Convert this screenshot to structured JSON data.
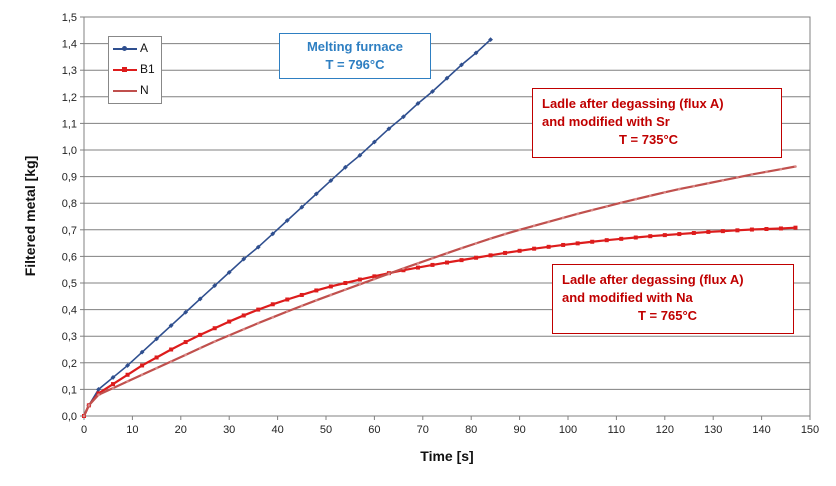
{
  "chart_data": {
    "type": "line",
    "xlabel": "Time [s]",
    "ylabel": "Filtered metal [kg]",
    "xlim": [
      0,
      150
    ],
    "ylim": [
      0,
      1.5
    ],
    "xticks": [
      "0",
      "10",
      "20",
      "30",
      "40",
      "50",
      "60",
      "70",
      "80",
      "90",
      "100",
      "110",
      "120",
      "130",
      "140",
      "150"
    ],
    "yticks": [
      "0,0",
      "0,1",
      "0,2",
      "0,3",
      "0,4",
      "0,5",
      "0,6",
      "0,7",
      "0,8",
      "0,9",
      "1,0",
      "1,1",
      "1,2",
      "1,3",
      "1,4",
      "1,5"
    ],
    "grid": true,
    "legend_position": "top-left",
    "series": [
      {
        "name": "A",
        "color": "#2f4f8f",
        "marker": "diamond",
        "x": [
          0,
          1,
          3,
          6,
          9,
          12,
          15,
          18,
          21,
          24,
          27,
          30,
          33,
          36,
          39,
          42,
          45,
          48,
          51,
          54,
          57,
          60,
          63,
          66,
          69,
          72,
          75,
          78,
          81,
          84
        ],
        "y": [
          0,
          0.04,
          0.1,
          0.145,
          0.19,
          0.24,
          0.29,
          0.34,
          0.39,
          0.44,
          0.49,
          0.54,
          0.59,
          0.635,
          0.685,
          0.735,
          0.785,
          0.835,
          0.885,
          0.935,
          0.98,
          1.03,
          1.08,
          1.125,
          1.175,
          1.22,
          1.27,
          1.32,
          1.365,
          1.415
        ]
      },
      {
        "name": "B1",
        "color": "#dd1c1c",
        "marker": "square",
        "x": [
          0,
          1,
          3,
          6,
          9,
          12,
          15,
          18,
          21,
          24,
          27,
          30,
          33,
          36,
          39,
          42,
          45,
          48,
          51,
          54,
          57,
          60,
          63,
          66,
          69,
          72,
          75,
          78,
          81,
          84,
          87,
          90,
          93,
          96,
          99,
          102,
          105,
          108,
          111,
          114,
          117,
          120,
          123,
          126,
          129,
          132,
          135,
          138,
          141,
          144,
          147
        ],
        "y": [
          0,
          0.04,
          0.085,
          0.12,
          0.155,
          0.19,
          0.22,
          0.25,
          0.278,
          0.305,
          0.33,
          0.355,
          0.378,
          0.4,
          0.42,
          0.438,
          0.455,
          0.472,
          0.487,
          0.5,
          0.513,
          0.525,
          0.537,
          0.548,
          0.558,
          0.568,
          0.577,
          0.586,
          0.595,
          0.604,
          0.613,
          0.621,
          0.629,
          0.636,
          0.643,
          0.649,
          0.655,
          0.661,
          0.666,
          0.671,
          0.676,
          0.68,
          0.684,
          0.688,
          0.692,
          0.695,
          0.698,
          0.701,
          0.703,
          0.705,
          0.708
        ]
      },
      {
        "name": "N",
        "color": "#c0504d",
        "marker": "none",
        "x": [
          0,
          1,
          3,
          6,
          9,
          12,
          15,
          18,
          21,
          24,
          27,
          30,
          33,
          36,
          39,
          42,
          45,
          48,
          51,
          54,
          57,
          60,
          63,
          66,
          69,
          72,
          75,
          78,
          81,
          84,
          87,
          90,
          93,
          96,
          99,
          102,
          105,
          108,
          111,
          114,
          117,
          120,
          123,
          126,
          129,
          132,
          135,
          138,
          141,
          144,
          147
        ],
        "y": [
          0,
          0.04,
          0.08,
          0.105,
          0.13,
          0.155,
          0.18,
          0.205,
          0.23,
          0.255,
          0.28,
          0.303,
          0.326,
          0.349,
          0.371,
          0.393,
          0.414,
          0.435,
          0.455,
          0.475,
          0.495,
          0.515,
          0.535,
          0.555,
          0.574,
          0.593,
          0.612,
          0.631,
          0.649,
          0.667,
          0.684,
          0.7,
          0.715,
          0.73,
          0.745,
          0.76,
          0.774,
          0.788,
          0.802,
          0.815,
          0.828,
          0.841,
          0.853,
          0.864,
          0.875,
          0.886,
          0.897,
          0.908,
          0.918,
          0.928,
          0.938
        ]
      }
    ],
    "annotations": [
      {
        "id": "melting",
        "lines": [
          "Melting furnace",
          "T = 796°C"
        ],
        "color": "#2e7fc2"
      },
      {
        "id": "sr",
        "lines": [
          "Ladle after degassing (flux A)",
          "and modified with Sr",
          "T = 735°C"
        ],
        "color": "#c00000"
      },
      {
        "id": "na",
        "lines": [
          "Ladle after degassing (flux A)",
          "and modified with Na",
          "T = 765°C"
        ],
        "color": "#c00000"
      }
    ]
  }
}
